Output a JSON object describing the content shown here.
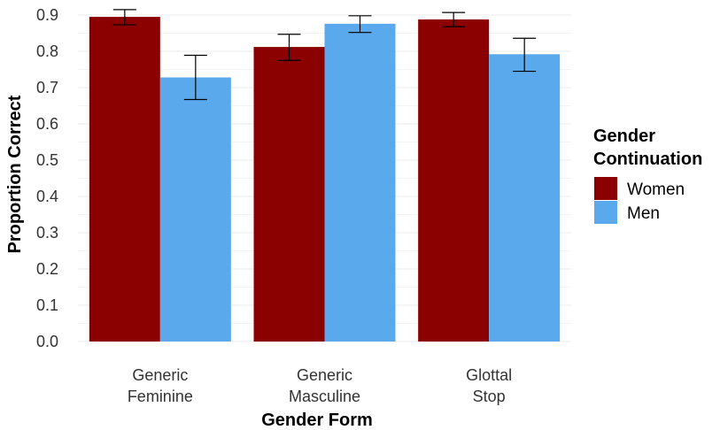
{
  "chart_data": {
    "type": "bar",
    "title": "",
    "xlabel": "Gender Form",
    "ylabel": "Proportion Correct",
    "ylim": [
      0,
      0.9
    ],
    "yticks": [
      "0.0",
      "0.1",
      "0.2",
      "0.3",
      "0.4",
      "0.5",
      "0.6",
      "0.7",
      "0.8",
      "0.9"
    ],
    "categories": [
      [
        "Generic",
        "Feminine"
      ],
      [
        "Generic",
        "Masculine"
      ],
      [
        "Glottal",
        "Stop"
      ]
    ],
    "legend": {
      "title": [
        "Gender",
        "Continuation"
      ],
      "position": "right"
    },
    "grid": true,
    "series": [
      {
        "name": "Women",
        "color": "#8b0000",
        "values": [
          0.895,
          0.812,
          0.888
        ],
        "error_low": [
          0.873,
          0.775,
          0.868
        ],
        "error_high": [
          0.915,
          0.847,
          0.907
        ]
      },
      {
        "name": "Men",
        "color": "#5aa9ec",
        "values": [
          0.728,
          0.876,
          0.792
        ],
        "error_low": [
          0.667,
          0.852,
          0.745
        ],
        "error_high": [
          0.789,
          0.898,
          0.836
        ]
      }
    ]
  }
}
